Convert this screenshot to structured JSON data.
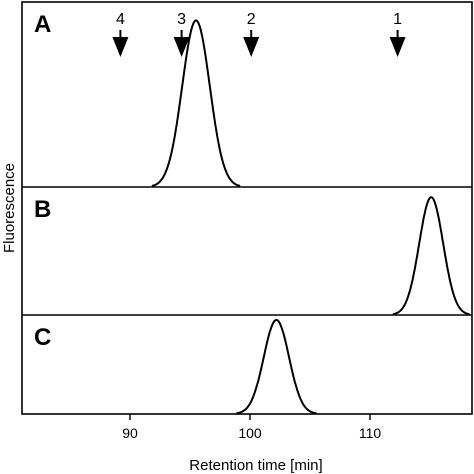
{
  "chart_data": {
    "type": "line",
    "xlabel": "Retention time [min]",
    "ylabel": "Fluorescence",
    "xlim": [
      81,
      118.5
    ],
    "xticks": [
      90,
      100,
      110
    ],
    "grid": false,
    "markers": [
      {
        "label": "4",
        "x": 89.2
      },
      {
        "label": "3",
        "x": 94.3
      },
      {
        "label": "2",
        "x": 100.1
      },
      {
        "label": "1",
        "x": 112.3
      }
    ],
    "panels": [
      {
        "label": "A",
        "peak_x": 95.5,
        "width": 1.15,
        "rel_height": 0.9
      },
      {
        "label": "B",
        "peak_x": 115.1,
        "width": 1.0,
        "rel_height": 0.92
      },
      {
        "label": "C",
        "peak_x": 102.2,
        "width": 1.05,
        "rel_height": 0.95
      }
    ]
  }
}
